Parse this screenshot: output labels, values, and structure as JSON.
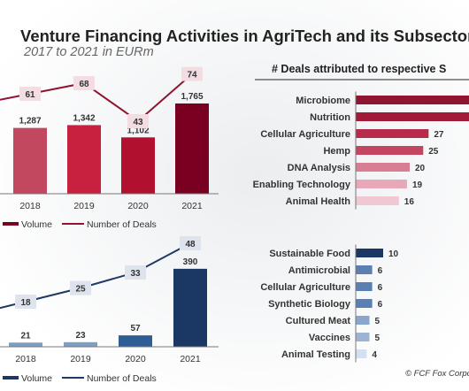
{
  "title": "Venture Financing Activities in AgriTech and its Subsectors",
  "subtitle": "2017 to 2021 in EURm",
  "right_panel_title": "# Deals attributed to respective S",
  "copyright": "© FCF Fox Corpo",
  "colors": {
    "volume_top": [
      "#c1485e",
      "#c8203f",
      "#b1102f",
      "#7a0022"
    ],
    "deals_top": "#8f1530",
    "volume_bottom": [
      "#7d9fc3",
      "#7d9fc3",
      "#2f5e94",
      "#1b3763"
    ],
    "deals_bottom": "#1f3864",
    "axis": "#777777"
  },
  "chart_data": [
    {
      "type": "bar",
      "categories": [
        "2018",
        "2019",
        "2020",
        "2021"
      ],
      "series": [
        {
          "name": "Volume",
          "values": [
            1287,
            1342,
            1102,
            1765
          ]
        },
        {
          "name": "Number of Deals",
          "type": "line",
          "values": [
            61,
            68,
            43,
            74
          ]
        }
      ],
      "value_labels": [
        "1,287",
        "1,342",
        "1,102",
        "1,765"
      ],
      "legend": [
        "Volume",
        "Number of Deals"
      ],
      "legend_position": "bottom"
    },
    {
      "type": "bar",
      "orientation": "horizontal",
      "categories": [
        "Microbiome",
        "Nutrition",
        "Cellular Agriculture",
        "Hemp",
        "DNA Analysis",
        "Enabling Technology",
        "Animal Health"
      ],
      "values": [
        null,
        null,
        27,
        25,
        20,
        19,
        16
      ],
      "value_labels": [
        "",
        "",
        "27",
        "25",
        "20",
        "19",
        "16"
      ],
      "colors": [
        "#8f1530",
        "#a31a38",
        "#b72c4a",
        "#c44560",
        "#d77e92",
        "#e8a8b8",
        "#f0c8d2"
      ]
    },
    {
      "type": "bar",
      "categories": [
        "2018",
        "2019",
        "2020",
        "2021"
      ],
      "series": [
        {
          "name": "Volume",
          "values": [
            21,
            23,
            57,
            390
          ]
        },
        {
          "name": "Number of Deals",
          "type": "line",
          "values": [
            18,
            25,
            33,
            48
          ]
        }
      ],
      "value_labels": [
        "21",
        "23",
        "57",
        "390"
      ],
      "legend": [
        "Volume",
        "Number of Deals"
      ],
      "legend_position": "bottom"
    },
    {
      "type": "bar",
      "orientation": "horizontal",
      "categories": [
        "Sustainable Food",
        "Antimicrobial",
        "Cellular Agriculture",
        "Synthetic Biology",
        "Cultured Meat",
        "Vaccines",
        "Animal Testing"
      ],
      "values": [
        10,
        6,
        6,
        6,
        5,
        5,
        4
      ],
      "value_labels": [
        "10",
        "6",
        "6",
        "6",
        "5",
        "5",
        "4"
      ],
      "colors": [
        "#1b3763",
        "#5a7fb0",
        "#5a7fb0",
        "#5a7fb0",
        "#8aa6cc",
        "#9cb3d4",
        "#d4dff0"
      ]
    }
  ]
}
